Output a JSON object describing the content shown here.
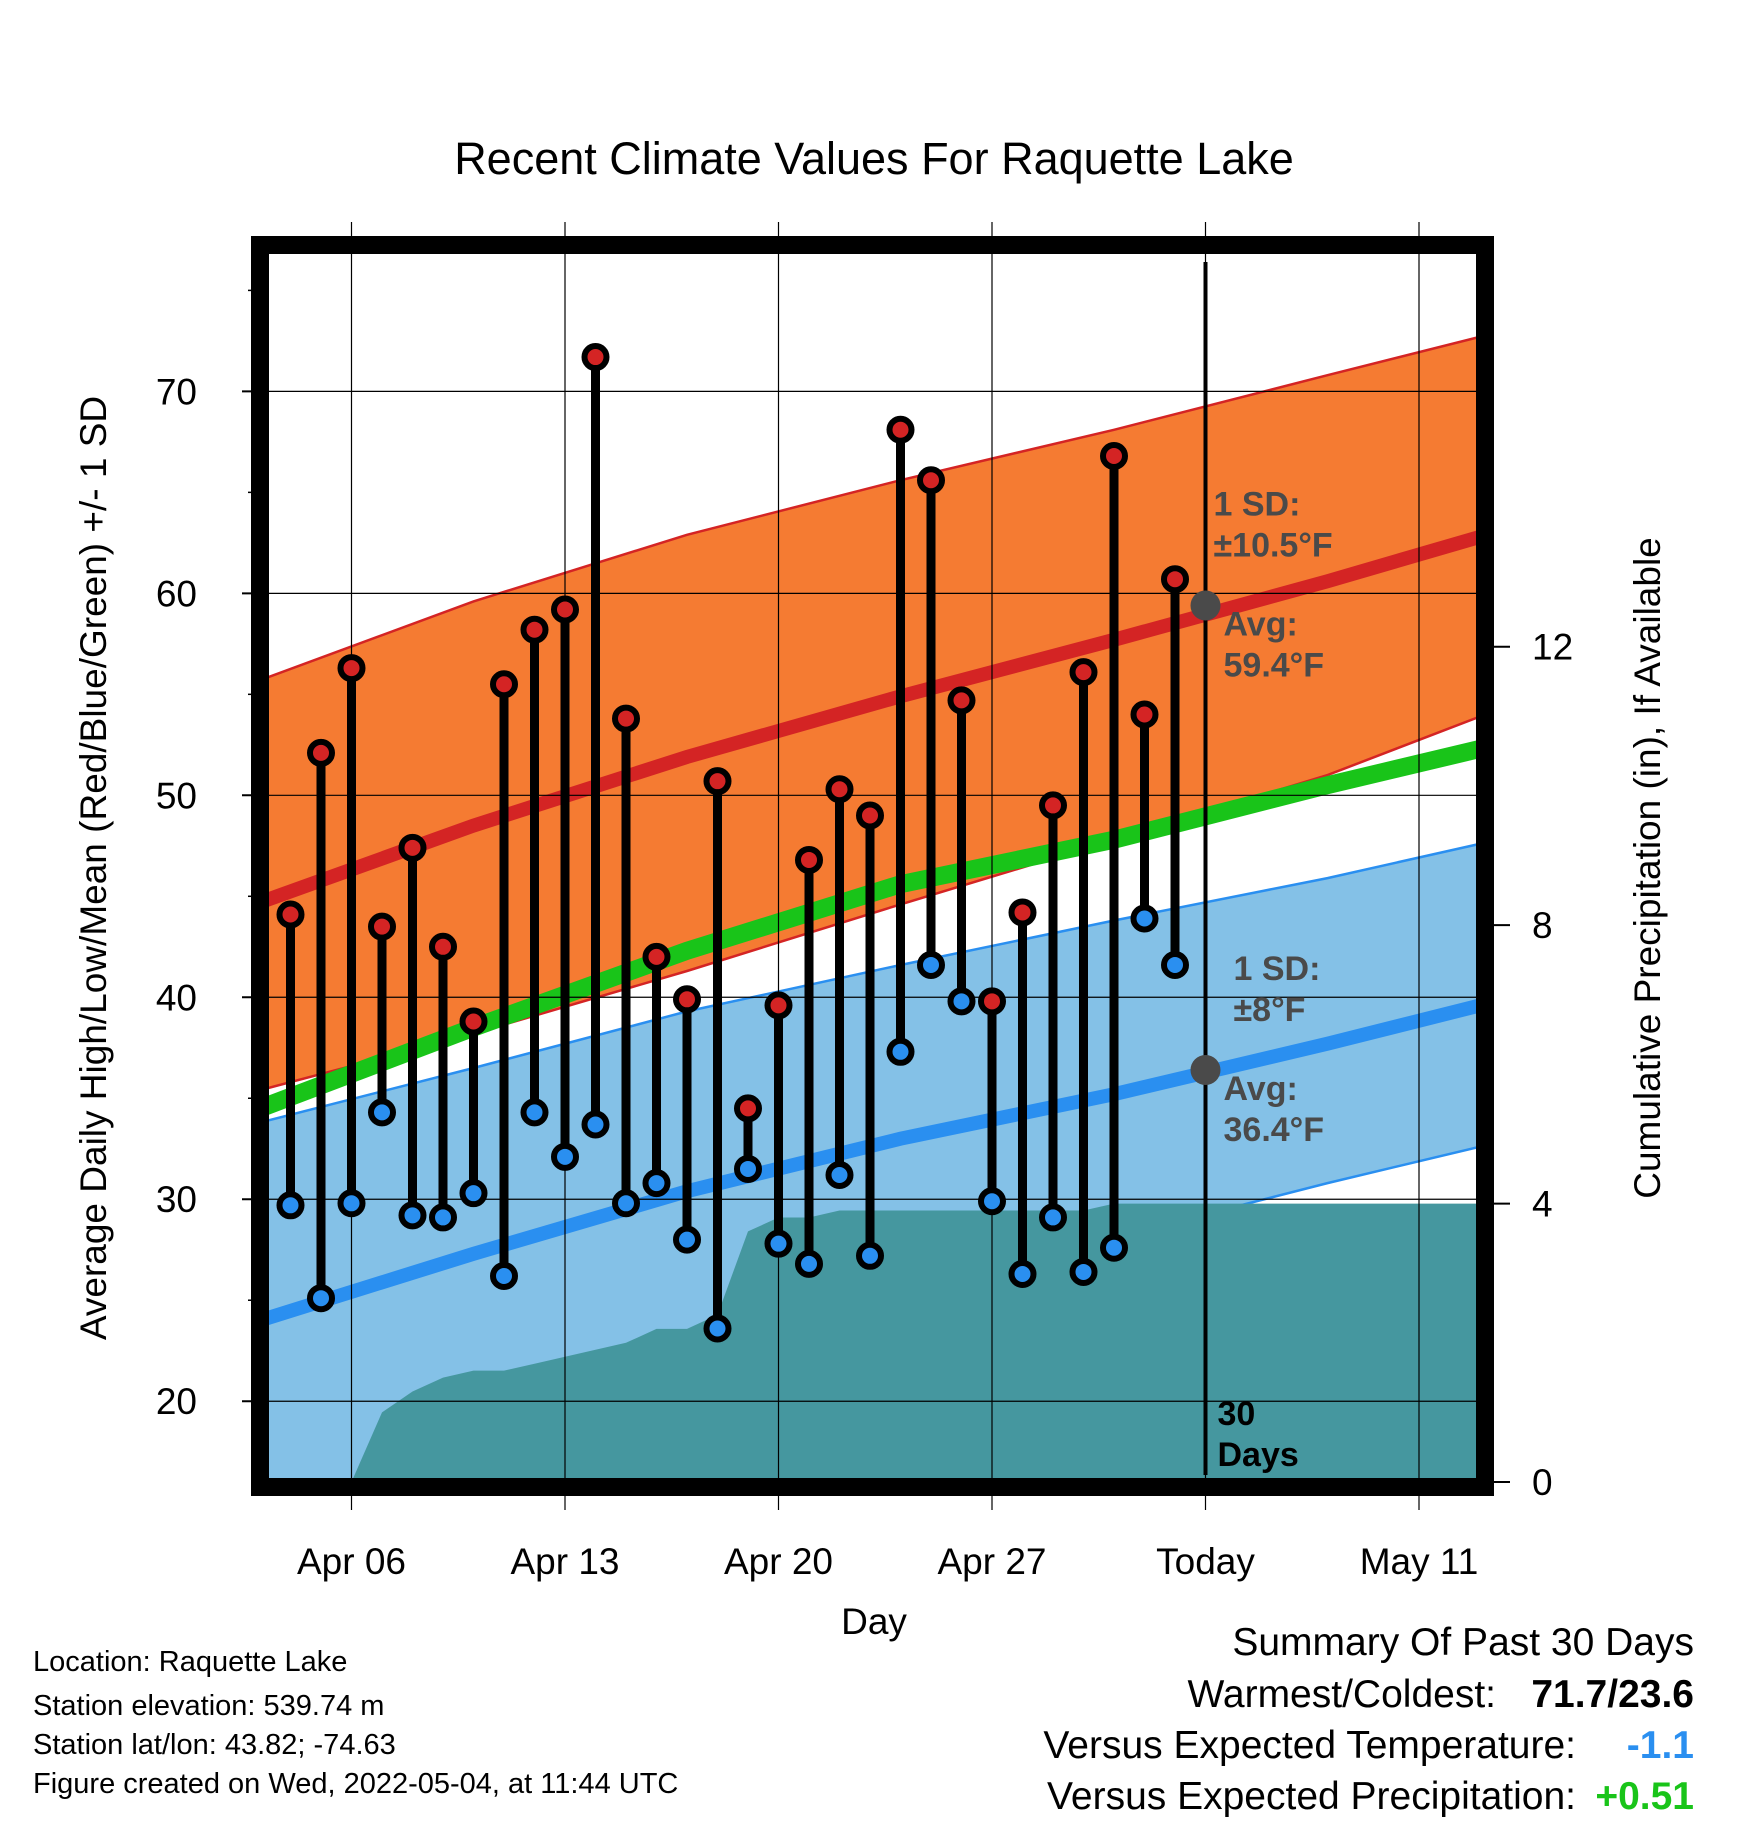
{
  "chart_data": {
    "type": "line",
    "title": "Recent Climate Values For Raquette Lake",
    "xlabel": "Day",
    "ylabel": "Average Daily High/Low/Mean (Red/Blue/Green) +/- 1 SD",
    "y2label": "Cumulative Precipitation (in), If Available",
    "x_start": "2022-04-03",
    "x_end": "2022-05-13",
    "xticks": [
      {
        "date": "2022-04-06",
        "label": "Apr 06"
      },
      {
        "date": "2022-04-13",
        "label": "Apr 13"
      },
      {
        "date": "2022-04-20",
        "label": "Apr 20"
      },
      {
        "date": "2022-04-27",
        "label": "Apr 27"
      },
      {
        "date": "2022-05-04",
        "label": "Today"
      },
      {
        "date": "2022-05-11",
        "label": "May 11"
      }
    ],
    "ylim": [
      16,
      77
    ],
    "yticks": [
      20,
      30,
      40,
      50,
      60,
      70
    ],
    "y2lim": [
      0,
      17.7
    ],
    "y2ticks": [
      0,
      4,
      8,
      12
    ],
    "today": "2022-05-04",
    "window_label": [
      "30",
      "Days"
    ],
    "normals": {
      "dates": [
        "2022-04-03",
        "2022-04-10",
        "2022-04-17",
        "2022-04-24",
        "2022-05-01",
        "2022-05-08",
        "2022-05-13"
      ],
      "high_avg": [
        44.7,
        48.5,
        51.9,
        54.9,
        57.7,
        60.6,
        62.8
      ],
      "high_upper": [
        55.7,
        59.6,
        62.9,
        65.6,
        68.1,
        70.8,
        72.7
      ],
      "high_lower": [
        35.4,
        38.2,
        41.3,
        44.6,
        47.8,
        51.0,
        53.9
      ],
      "low_avg": [
        24.0,
        27.3,
        30.4,
        33.0,
        35.2,
        37.7,
        39.6
      ],
      "low_upper": [
        33.8,
        36.5,
        39.3,
        41.6,
        43.8,
        45.9,
        47.6
      ],
      "low_lower": [
        13.0,
        16.5,
        21.3,
        25.4,
        28.1,
        30.8,
        32.6
      ],
      "mean": [
        34.5,
        38.5,
        42.3,
        45.6,
        47.8,
        50.5,
        52.3
      ]
    },
    "daily": {
      "dates": [
        "2022-04-04",
        "2022-04-05",
        "2022-04-06",
        "2022-04-07",
        "2022-04-08",
        "2022-04-09",
        "2022-04-10",
        "2022-04-11",
        "2022-04-12",
        "2022-04-13",
        "2022-04-14",
        "2022-04-15",
        "2022-04-16",
        "2022-04-17",
        "2022-04-18",
        "2022-04-19",
        "2022-04-20",
        "2022-04-21",
        "2022-04-22",
        "2022-04-23",
        "2022-04-24",
        "2022-04-25",
        "2022-04-26",
        "2022-04-27",
        "2022-04-28",
        "2022-04-29",
        "2022-04-30",
        "2022-05-01",
        "2022-05-02",
        "2022-05-03"
      ],
      "high": [
        44.1,
        52.1,
        56.3,
        43.5,
        47.4,
        42.5,
        38.8,
        55.5,
        58.2,
        59.2,
        71.7,
        53.8,
        42.0,
        39.9,
        50.7,
        34.5,
        39.6,
        46.8,
        50.3,
        49.0,
        68.1,
        65.6,
        54.7,
        39.8,
        44.2,
        49.5,
        56.1,
        66.8,
        54.0,
        60.7
      ],
      "low": [
        29.7,
        25.1,
        29.8,
        34.3,
        29.2,
        29.1,
        30.3,
        26.2,
        34.3,
        32.1,
        33.7,
        29.8,
        30.8,
        28.0,
        23.6,
        31.5,
        27.8,
        26.8,
        31.2,
        27.2,
        37.3,
        41.6,
        39.8,
        29.9,
        26.3,
        29.1,
        26.4,
        27.6,
        43.9,
        41.6
      ]
    },
    "precip": {
      "dates": [
        "2022-04-03",
        "2022-04-04",
        "2022-04-05",
        "2022-04-06",
        "2022-04-07",
        "2022-04-08",
        "2022-04-09",
        "2022-04-10",
        "2022-04-11",
        "2022-04-12",
        "2022-04-13",
        "2022-04-14",
        "2022-04-15",
        "2022-04-16",
        "2022-04-17",
        "2022-04-18",
        "2022-04-19",
        "2022-04-20",
        "2022-04-21",
        "2022-04-22",
        "2022-04-26",
        "2022-04-30",
        "2022-05-01",
        "2022-05-04",
        "2022-05-13"
      ],
      "values": [
        0,
        0,
        0,
        0,
        1.0,
        1.3,
        1.5,
        1.6,
        1.6,
        1.7,
        1.8,
        1.9,
        2.0,
        2.2,
        2.2,
        2.4,
        3.6,
        3.8,
        3.8,
        3.9,
        3.9,
        3.9,
        4.0,
        4.0,
        4.0
      ]
    },
    "annotations": {
      "high_sd": [
        "1 SD:",
        "±10.5°F"
      ],
      "high_avg": [
        "Avg:",
        "59.4°F"
      ],
      "low_sd": [
        "1 SD:",
        "±8°F"
      ],
      "low_avg": [
        "Avg:",
        "36.4°F"
      ],
      "high_avg_value": 59.4,
      "low_avg_value": 36.4
    },
    "colors": {
      "high_band": "#f57b32",
      "high_line": "#d42424",
      "low_band": "#84c1e7",
      "low_line": "#2a8ff0",
      "mean_line": "#19c419",
      "precip": "#45979f",
      "high_dot": "#d42424",
      "low_dot": "#2a8ff0",
      "annotation": "#4a4a4a",
      "cold_value": "#2a8ff0",
      "wet_value": "#19c419"
    },
    "grid": true,
    "legend": "none"
  },
  "footer": {
    "location": "Location: Raquette Lake",
    "elevation": "Station elevation: 539.74 m",
    "latlon": "Station lat/lon: 43.82; -74.63",
    "created": "Figure created on Wed, 2022-05-04, at 11:44 UTC"
  },
  "summary": {
    "title": "Summary Of Past 30 Days",
    "warm_cold_label": "Warmest/Coldest:",
    "warm_cold_value": "71.7/23.6",
    "temp_label": "Versus Expected Temperature:",
    "temp_value": "-1.1",
    "precip_label": "Versus Expected Precipitation:",
    "precip_value": "+0.51"
  }
}
